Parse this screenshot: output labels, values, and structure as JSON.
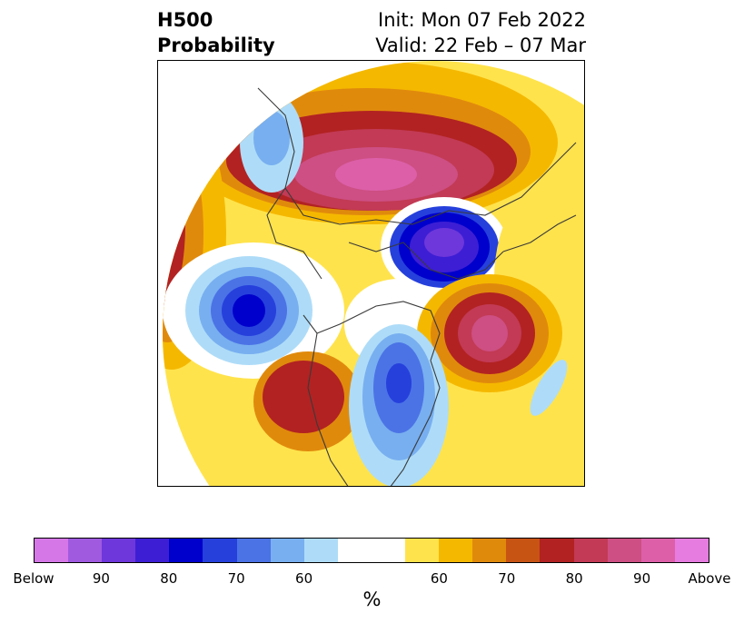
{
  "header": {
    "title_line1": "H500",
    "title_line2": "Probability",
    "init": "Init: Mon 07 Feb 2022",
    "valid": "Valid: 22 Feb – 07 Mar"
  },
  "map": {
    "projection": "north-polar-stereographic",
    "features": [
      "coastlines",
      "country-borders",
      "state-borders"
    ]
  },
  "colorbar": {
    "units_label": "%",
    "colors": [
      "#d677e8",
      "#a05ae0",
      "#6e37db",
      "#3d1ed4",
      "#0000cc",
      "#2640dc",
      "#4b73e6",
      "#78aff0",
      "#aedcf8",
      "#ffffff",
      "#ffffff",
      "#ffe34c",
      "#f5b800",
      "#e08a0c",
      "#c85414",
      "#b22222",
      "#c23a55",
      "#cd4f83",
      "#dc5fa8",
      "#e67be0"
    ],
    "tick_labels": [
      "Below",
      "90",
      "80",
      "70",
      "60",
      "",
      "60",
      "70",
      "80",
      "90",
      "Above"
    ]
  }
}
